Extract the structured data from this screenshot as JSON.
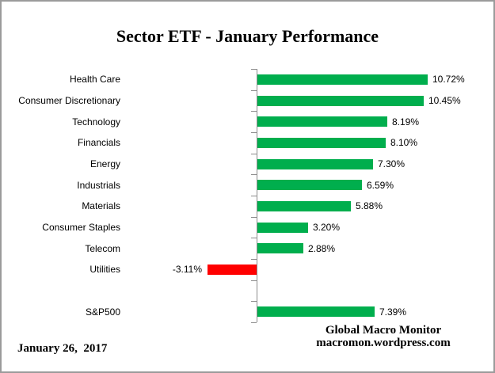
{
  "chart_data": {
    "type": "bar",
    "orientation": "horizontal",
    "title": "Sector ETF - January Performance",
    "xlabel": "",
    "ylabel": "",
    "gridlines": false,
    "value_axis_visible": false,
    "legend": "none",
    "categories": [
      "Health Care",
      "Consumer Discretionary",
      "Technology",
      "Financials",
      "Energy",
      "Industrials",
      "Materials",
      "Consumer Staples",
      "Telecom",
      "Utilities",
      "",
      "S&P500"
    ],
    "values": [
      10.72,
      10.45,
      8.19,
      8.1,
      7.3,
      6.59,
      5.88,
      3.2,
      2.88,
      -3.11,
      null,
      7.39
    ],
    "value_labels": [
      "10.72%",
      "10.45%",
      "8.19%",
      "8.10%",
      "7.30%",
      "6.59%",
      "5.88%",
      "3.20%",
      "2.88%",
      "-3.11%",
      "",
      "7.39%"
    ],
    "positive_color": "#00AE4D",
    "negative_color": "#FF0000",
    "axis_color": "#8c8c8c"
  },
  "footer": {
    "date": "January 26,  2017",
    "source_line1": "Global Macro Monitor",
    "source_line2": "macromon.wordpress.com"
  }
}
